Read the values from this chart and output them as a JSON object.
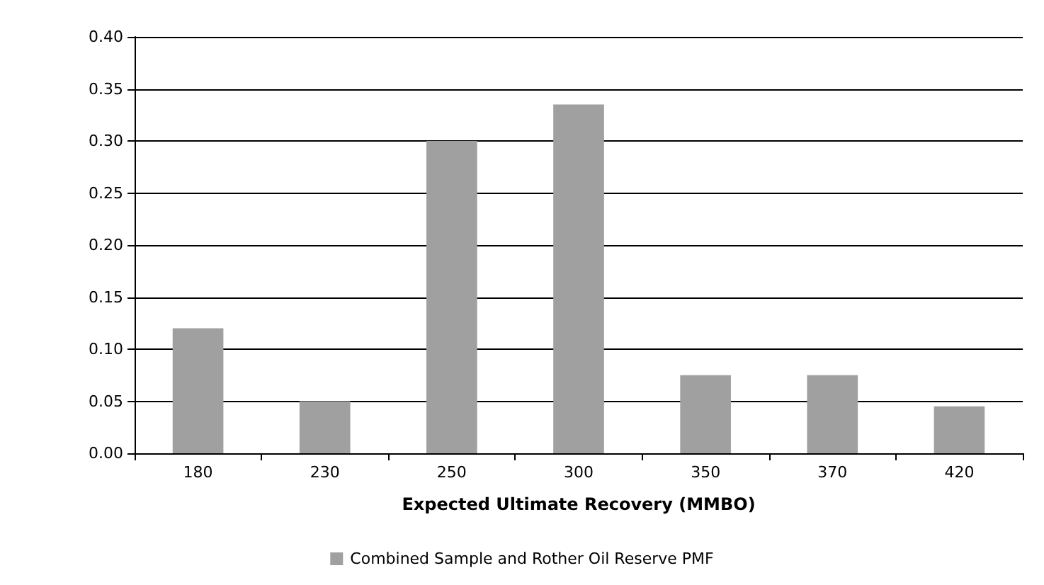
{
  "chart_data": {
    "type": "bar",
    "xlabel": "Expected Ultimate Recovery (MMBO)",
    "categories": [
      "180",
      "230",
      "250",
      "300",
      "350",
      "370",
      "420"
    ],
    "series": [
      {
        "name": "Combined Sample and Rother Oil Reserve PMF",
        "color": "#a0a0a0",
        "values": [
          0.12,
          0.05,
          0.3,
          0.335,
          0.075,
          0.075,
          0.045
        ]
      }
    ],
    "ylim": [
      0,
      0.4
    ],
    "yticks": [
      {
        "value": 0,
        "label": "0.00"
      },
      {
        "value": 0.05,
        "label": "0.05"
      },
      {
        "value": 0.1,
        "label": "0.10"
      },
      {
        "value": 0.15,
        "label": "0.15"
      },
      {
        "value": 0.2,
        "label": "0.20"
      },
      {
        "value": 0.25,
        "label": "0.25"
      },
      {
        "value": 0.3,
        "label": "0.30"
      },
      {
        "value": 0.35,
        "label": "0.35"
      },
      {
        "value": 0.4,
        "label": "0.40"
      }
    ],
    "grid": "y",
    "legend": "bottom"
  }
}
